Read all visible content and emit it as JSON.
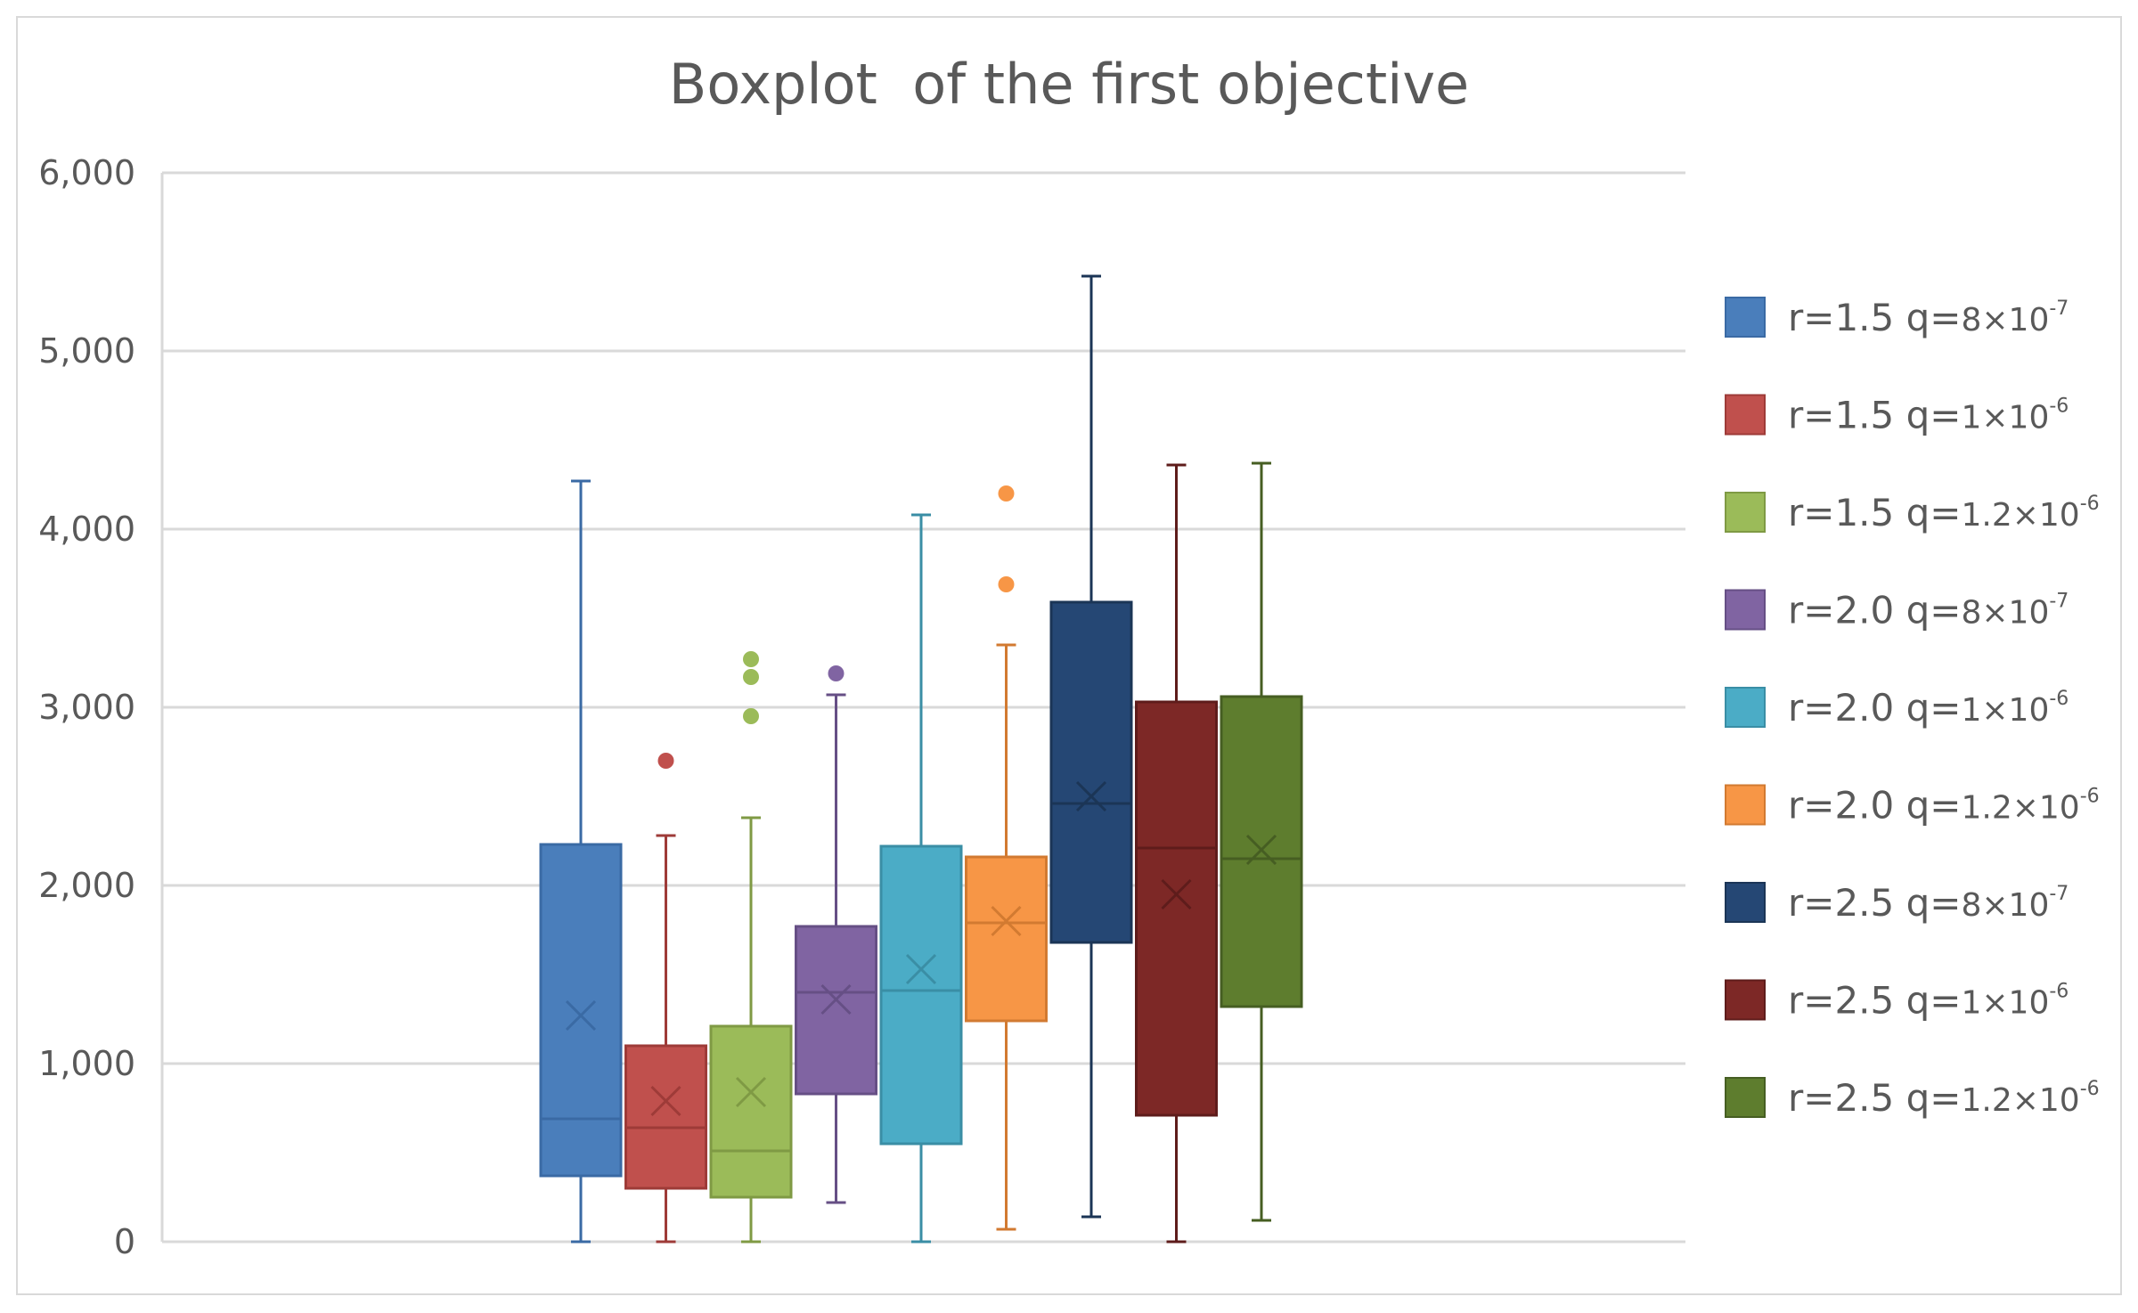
{
  "chart_data": {
    "type": "boxplot",
    "title": "Boxplot  of the first objective",
    "xlabel": "",
    "ylabel": "",
    "ylim": [
      0,
      6000
    ],
    "yticks": [
      {
        "value": 0,
        "label": "0"
      },
      {
        "value": 1000,
        "label": "1,000"
      },
      {
        "value": 2000,
        "label": "2,000"
      },
      {
        "value": 3000,
        "label": "3,000"
      },
      {
        "value": 4000,
        "label": "4,000"
      },
      {
        "value": 5000,
        "label": "5,000"
      },
      {
        "value": 6000,
        "label": "6,000"
      }
    ],
    "grid": true,
    "legend_position": "right",
    "series": [
      {
        "name": "r=1.5 q=8×10-7",
        "r": "r=1.5",
        "q_prefix": "q=",
        "q_mant": "8",
        "q_exp": "-7",
        "color": "#4a7ebb",
        "edge": "#3a6aa4",
        "min": 0,
        "q1": 370,
        "median": 690,
        "q3": 2230,
        "max": 4270,
        "mean": 1270,
        "outliers": []
      },
      {
        "name": "r=1.5 q=1×10-6",
        "r": "r=1.5",
        "q_prefix": "q=",
        "q_mant": "1",
        "q_exp": "-6",
        "color": "#c0504d",
        "edge": "#9e3b38",
        "min": 0,
        "q1": 300,
        "median": 640,
        "q3": 1100,
        "max": 2280,
        "mean": 790,
        "outliers": [
          2700
        ]
      },
      {
        "name": "r=1.5 q=1.2×10-6",
        "r": "r=1.5",
        "q_prefix": "q=",
        "q_mant": "1.2",
        "q_exp": "-6",
        "color": "#9bbb59",
        "edge": "#7f9a44",
        "min": 0,
        "q1": 250,
        "median": 510,
        "q3": 1210,
        "max": 2380,
        "mean": 840,
        "outliers": [
          2950,
          3170,
          3270
        ]
      },
      {
        "name": "r=2.0 q=8×10-7",
        "r": "r=2.0",
        "q_prefix": "q=",
        "q_mant": "8",
        "q_exp": "-7",
        "color": "#8064a2",
        "edge": "#664f85",
        "min": 220,
        "q1": 830,
        "median": 1400,
        "q3": 1770,
        "max": 3070,
        "mean": 1360,
        "outliers": [
          3190
        ]
      },
      {
        "name": "r=2.0 q=1×10-6",
        "r": "r=2.0",
        "q_prefix": "q=",
        "q_mant": "1",
        "q_exp": "-6",
        "color": "#4bacc6",
        "edge": "#3a8ea5",
        "min": 0,
        "q1": 550,
        "median": 1410,
        "q3": 2220,
        "max": 4080,
        "mean": 1530,
        "outliers": []
      },
      {
        "name": "r=2.0 q=1.2×10-6",
        "r": "r=2.0",
        "q_prefix": "q=",
        "q_mant": "1.2",
        "q_exp": "-6",
        "color": "#f79646",
        "edge": "#d27a31",
        "min": 70,
        "q1": 1240,
        "median": 1790,
        "q3": 2160,
        "max": 3350,
        "mean": 1800,
        "outliers": [
          3690,
          4200
        ]
      },
      {
        "name": "r=2.5 q=8×10-7",
        "r": "r=2.5",
        "q_prefix": "q=",
        "q_mant": "8",
        "q_exp": "-7",
        "color": "#254774",
        "edge": "#1b3556",
        "min": 140,
        "q1": 1680,
        "median": 2460,
        "q3": 3590,
        "max": 5420,
        "mean": 2500,
        "outliers": []
      },
      {
        "name": "r=2.5 q=1×10-6",
        "r": "r=2.5",
        "q_prefix": "q=",
        "q_mant": "1",
        "q_exp": "-6",
        "color": "#7d2826",
        "edge": "#5e1c1b",
        "min": 0,
        "q1": 710,
        "median": 2210,
        "q3": 3030,
        "max": 4360,
        "mean": 1950,
        "outliers": []
      },
      {
        "name": "r=2.5 q=1.2×10-6",
        "r": "r=2.5",
        "q_prefix": "q=",
        "q_mant": "1.2",
        "q_exp": "-6",
        "color": "#5e7d2e",
        "edge": "#465e22",
        "min": 120,
        "q1": 1320,
        "median": 2150,
        "q3": 3060,
        "max": 4370,
        "mean": 2200,
        "outliers": []
      }
    ]
  }
}
